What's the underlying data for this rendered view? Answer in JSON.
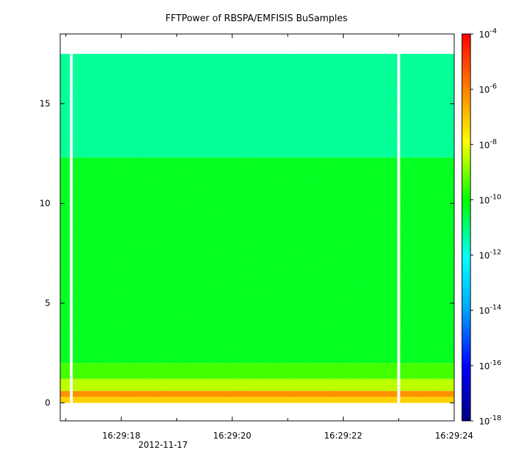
{
  "chart_data": {
    "type": "heatmap",
    "title": "FFTPower of RBSPA/EMFISIS  BuSamples",
    "xlabel": "",
    "ylabel": "",
    "x_ticks": [
      "16:29:18",
      "16:29:20",
      "16:29:22",
      "16:29:24"
    ],
    "x_date_label": "2012-11-17",
    "x_range": [
      "16:29:16.9",
      "16:29:24.0"
    ],
    "y_ticks": [
      "0",
      "5",
      "10",
      "15"
    ],
    "ylim": [
      -0.9,
      18.5
    ],
    "colorbar": {
      "scale": "log",
      "range": [
        1e-18,
        0.0001
      ],
      "tick_values": [
        -4,
        -6,
        -8,
        -10,
        -12,
        -14,
        -16,
        -18
      ],
      "tick_base": "10",
      "colors": [
        "#000080",
        "#0000ff",
        "#00ffff",
        "#00ff00",
        "#ffff00",
        "#ff8000",
        "#ff0000"
      ]
    },
    "gaps_at": [
      "16:29:17.1",
      "16:29:23.0"
    ],
    "bands": [
      {
        "y_range": [
          12.3,
          17.5
        ],
        "log10_power": -11.3
      },
      {
        "y_range": [
          2.0,
          12.3
        ],
        "log10_power": -10.3
      },
      {
        "y_range": [
          1.2,
          2.0
        ],
        "log10_power": -9.5
      },
      {
        "y_range": [
          0.6,
          1.2
        ],
        "log10_power": -8.5
      },
      {
        "y_range": [
          0.3,
          0.6
        ],
        "log10_power": -6.2
      },
      {
        "y_range": [
          0.0,
          0.3
        ],
        "log10_power": -7.2
      }
    ]
  }
}
